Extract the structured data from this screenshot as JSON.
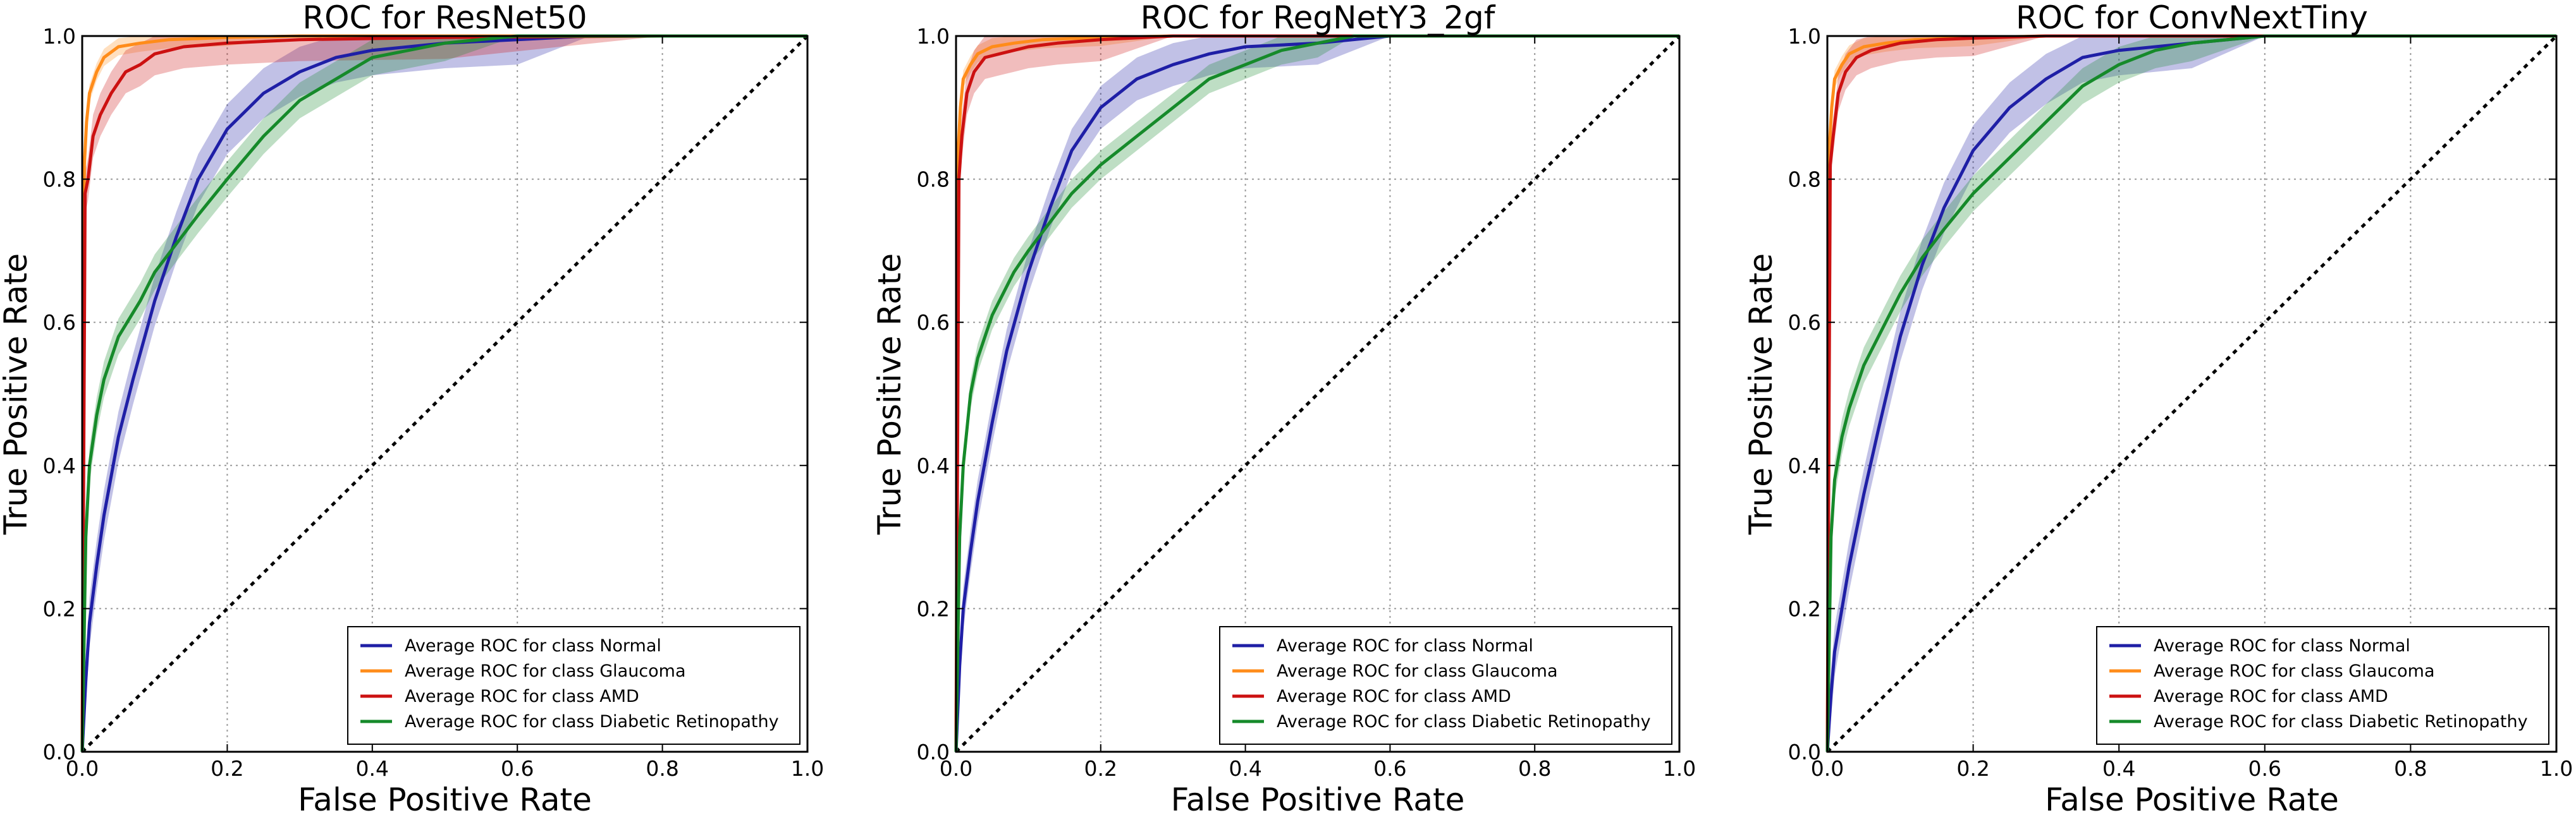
{
  "figure": {
    "colors": {
      "Normal": "#1f1fa6",
      "Glaucoma": "#ff8c1a",
      "AMD": "#cc1111",
      "Diabetic Retinopathy": "#168a2a"
    }
  },
  "chart_data": [
    {
      "type": "line",
      "title": "ROC for ResNet50",
      "xlabel": "False Positive Rate",
      "ylabel": "True Positive Rate",
      "xlim": [
        0.0,
        1.0
      ],
      "ylim": [
        0.0,
        1.0
      ],
      "xticks": [
        "0.0",
        "0.2",
        "0.4",
        "0.6",
        "0.8",
        "1.0"
      ],
      "yticks": [
        "0.0",
        "0.2",
        "0.4",
        "0.6",
        "0.8",
        "1.0"
      ],
      "grid": true,
      "legend_position": "lower-right",
      "diagonal": true,
      "series": [
        {
          "name": "Average ROC for class Normal",
          "class": "Normal",
          "x": [
            0,
            0.005,
            0.01,
            0.02,
            0.03,
            0.05,
            0.07,
            0.1,
            0.13,
            0.16,
            0.2,
            0.25,
            0.3,
            0.35,
            0.4,
            0.5,
            0.6,
            0.7,
            0.8,
            1.0
          ],
          "y": [
            0,
            0.1,
            0.18,
            0.26,
            0.33,
            0.44,
            0.52,
            0.63,
            0.72,
            0.8,
            0.87,
            0.92,
            0.95,
            0.97,
            0.98,
            0.99,
            0.995,
            1.0,
            1.0,
            1.0
          ],
          "band": 0.035
        },
        {
          "name": "Average ROC for class Glaucoma",
          "class": "Glaucoma",
          "x": [
            0,
            0.003,
            0.006,
            0.01,
            0.02,
            0.03,
            0.05,
            0.08,
            0.12,
            0.2,
            0.3,
            0.5,
            1.0
          ],
          "y": [
            0,
            0.82,
            0.88,
            0.92,
            0.95,
            0.97,
            0.985,
            0.99,
            0.995,
            0.998,
            1.0,
            1.0,
            1.0
          ],
          "band": 0.012
        },
        {
          "name": "Average ROC for class AMD",
          "class": "AMD",
          "x": [
            0,
            0.004,
            0.008,
            0.015,
            0.025,
            0.04,
            0.06,
            0.08,
            0.1,
            0.14,
            0.2,
            0.3,
            0.5,
            0.8,
            1.0
          ],
          "y": [
            0,
            0.78,
            0.8,
            0.86,
            0.89,
            0.92,
            0.95,
            0.96,
            0.975,
            0.985,
            0.99,
            0.995,
            0.998,
            1.0,
            1.0
          ],
          "band": 0.03
        },
        {
          "name": "Average ROC for class Diabetic Retinopathy",
          "class": "Diabetic Retinopathy",
          "x": [
            0,
            0.005,
            0.01,
            0.02,
            0.03,
            0.05,
            0.08,
            0.1,
            0.13,
            0.16,
            0.2,
            0.25,
            0.3,
            0.35,
            0.4,
            0.45,
            0.5,
            0.6,
            1.0
          ],
          "y": [
            0,
            0.3,
            0.4,
            0.47,
            0.52,
            0.58,
            0.63,
            0.67,
            0.71,
            0.75,
            0.8,
            0.86,
            0.91,
            0.94,
            0.97,
            0.98,
            0.99,
            1.0,
            1.0
          ],
          "band": 0.025
        }
      ]
    },
    {
      "type": "line",
      "title": "ROC for RegNetY3_2gf",
      "xlabel": "False Positive Rate",
      "ylabel": "True Positive Rate",
      "xlim": [
        0.0,
        1.0
      ],
      "ylim": [
        0.0,
        1.0
      ],
      "xticks": [
        "0.0",
        "0.2",
        "0.4",
        "0.6",
        "0.8",
        "1.0"
      ],
      "yticks": [
        "0.0",
        "0.2",
        "0.4",
        "0.6",
        "0.8",
        "1.0"
      ],
      "grid": true,
      "legend_position": "lower-right",
      "diagonal": true,
      "series": [
        {
          "name": "Average ROC for class Normal",
          "class": "Normal",
          "x": [
            0,
            0.005,
            0.01,
            0.02,
            0.03,
            0.05,
            0.07,
            0.1,
            0.13,
            0.16,
            0.2,
            0.25,
            0.3,
            0.35,
            0.4,
            0.5,
            0.6,
            0.7,
            1.0
          ],
          "y": [
            0,
            0.12,
            0.2,
            0.28,
            0.35,
            0.46,
            0.56,
            0.67,
            0.76,
            0.84,
            0.9,
            0.94,
            0.96,
            0.975,
            0.985,
            0.99,
            1.0,
            1.0,
            1.0
          ],
          "band": 0.03
        },
        {
          "name": "Average ROC for class Glaucoma",
          "class": "Glaucoma",
          "x": [
            0,
            0.003,
            0.006,
            0.01,
            0.02,
            0.03,
            0.05,
            0.08,
            0.12,
            0.2,
            0.3,
            1.0
          ],
          "y": [
            0,
            0.84,
            0.9,
            0.94,
            0.96,
            0.975,
            0.985,
            0.99,
            0.995,
            0.998,
            1.0,
            1.0
          ],
          "band": 0.012
        },
        {
          "name": "Average ROC for class AMD",
          "class": "AMD",
          "x": [
            0,
            0.004,
            0.008,
            0.015,
            0.025,
            0.04,
            0.06,
            0.08,
            0.1,
            0.14,
            0.2,
            0.3,
            1.0
          ],
          "y": [
            0,
            0.8,
            0.86,
            0.92,
            0.95,
            0.97,
            0.975,
            0.98,
            0.985,
            0.99,
            0.995,
            1.0,
            1.0
          ],
          "band": 0.03
        },
        {
          "name": "Average ROC for class Diabetic Retinopathy",
          "class": "Diabetic Retinopathy",
          "x": [
            0,
            0.005,
            0.01,
            0.02,
            0.03,
            0.05,
            0.08,
            0.1,
            0.13,
            0.16,
            0.2,
            0.25,
            0.3,
            0.35,
            0.4,
            0.45,
            0.5,
            0.55,
            1.0
          ],
          "y": [
            0,
            0.3,
            0.4,
            0.5,
            0.55,
            0.61,
            0.67,
            0.7,
            0.74,
            0.78,
            0.82,
            0.86,
            0.9,
            0.94,
            0.96,
            0.98,
            0.99,
            1.0,
            1.0
          ],
          "band": 0.02
        }
      ]
    },
    {
      "type": "line",
      "title": "ROC for ConvNextTiny",
      "xlabel": "False Positive Rate",
      "ylabel": "True Positive Rate",
      "xlim": [
        0.0,
        1.0
      ],
      "ylim": [
        0.0,
        1.0
      ],
      "xticks": [
        "0.0",
        "0.2",
        "0.4",
        "0.6",
        "0.8",
        "1.0"
      ],
      "yticks": [
        "0.0",
        "0.2",
        "0.4",
        "0.6",
        "0.8",
        "1.0"
      ],
      "grid": true,
      "legend_position": "lower-right",
      "diagonal": true,
      "series": [
        {
          "name": "Average ROC for class Normal",
          "class": "Normal",
          "x": [
            0,
            0.005,
            0.01,
            0.02,
            0.03,
            0.05,
            0.07,
            0.1,
            0.13,
            0.16,
            0.2,
            0.25,
            0.3,
            0.35,
            0.4,
            0.5,
            0.6,
            1.0
          ],
          "y": [
            0,
            0.08,
            0.14,
            0.2,
            0.26,
            0.36,
            0.45,
            0.58,
            0.68,
            0.76,
            0.84,
            0.9,
            0.94,
            0.97,
            0.98,
            0.99,
            1.0,
            1.0
          ],
          "band": 0.035
        },
        {
          "name": "Average ROC for class Glaucoma",
          "class": "Glaucoma",
          "x": [
            0,
            0.003,
            0.006,
            0.01,
            0.02,
            0.03,
            0.05,
            0.08,
            0.12,
            0.2,
            0.3,
            1.0
          ],
          "y": [
            0,
            0.85,
            0.9,
            0.94,
            0.96,
            0.975,
            0.985,
            0.99,
            0.995,
            0.998,
            1.0,
            1.0
          ],
          "band": 0.012
        },
        {
          "name": "Average ROC for class AMD",
          "class": "AMD",
          "x": [
            0,
            0.004,
            0.008,
            0.015,
            0.025,
            0.04,
            0.06,
            0.08,
            0.1,
            0.15,
            0.2,
            0.3,
            1.0
          ],
          "y": [
            0,
            0.82,
            0.86,
            0.92,
            0.95,
            0.97,
            0.98,
            0.985,
            0.99,
            0.995,
            0.997,
            1.0,
            1.0
          ],
          "band": 0.025
        },
        {
          "name": "Average ROC for class Diabetic Retinopathy",
          "class": "Diabetic Retinopathy",
          "x": [
            0,
            0.005,
            0.01,
            0.02,
            0.03,
            0.05,
            0.08,
            0.1,
            0.13,
            0.16,
            0.2,
            0.25,
            0.3,
            0.35,
            0.4,
            0.45,
            0.5,
            0.6,
            1.0
          ],
          "y": [
            0,
            0.3,
            0.38,
            0.44,
            0.48,
            0.54,
            0.6,
            0.64,
            0.69,
            0.73,
            0.78,
            0.83,
            0.88,
            0.93,
            0.96,
            0.98,
            0.99,
            1.0,
            1.0
          ],
          "band": 0.025
        }
      ]
    }
  ]
}
